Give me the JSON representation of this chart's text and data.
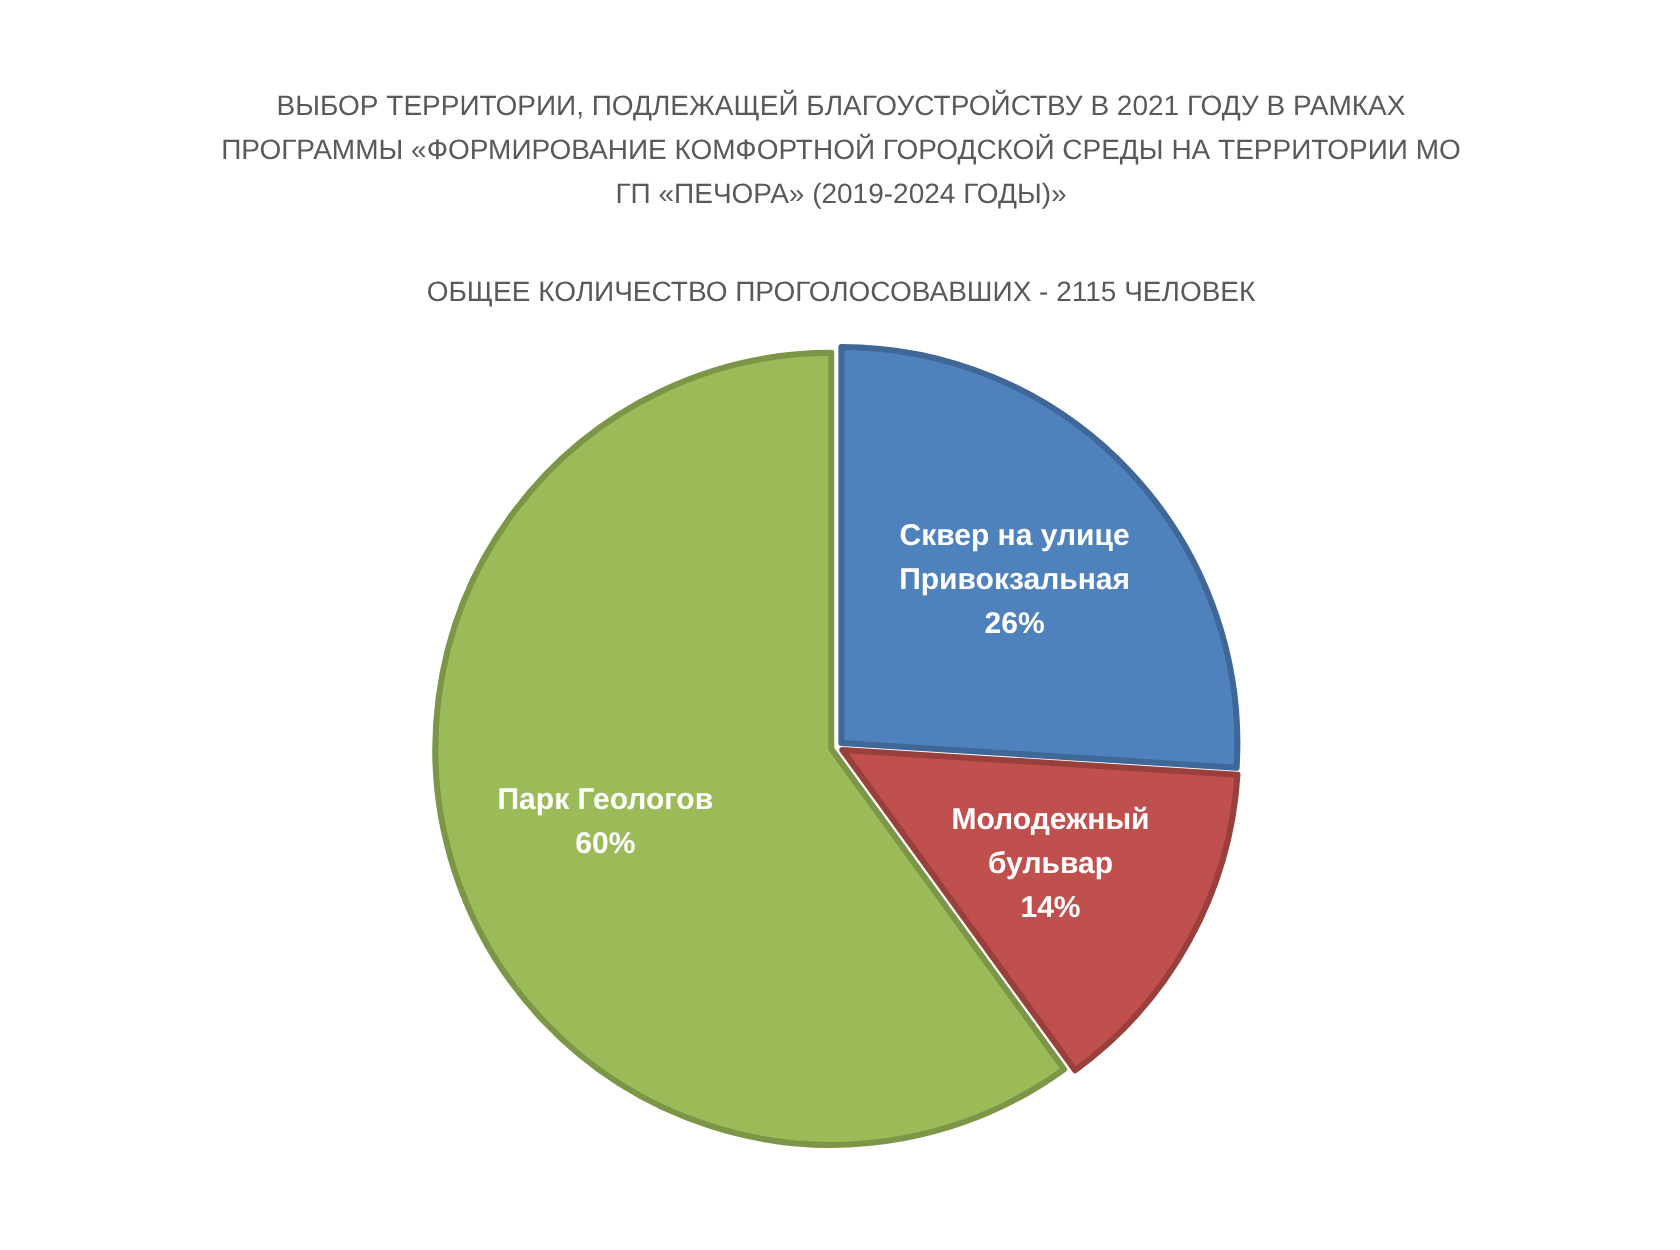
{
  "chart_data": {
    "type": "pie",
    "title": "ВЫБОР ТЕРРИТОРИИ, ПОДЛЕЖАЩЕЙ БЛАГОУСТРОЙСТВУ В 2021 ГОДУ В РАМКАХ ПРОГРАММЫ «ФОРМИРОВАНИЕ КОМФОРТНОЙ ГОРОДСКОЙ СРЕДЫ НА ТЕРРИТОРИИ МО ГП «ПЕЧОРА» (2019-2024 ГОДЫ)»",
    "subtitle": "ОБЩЕЕ КОЛИЧЕСТВО ПРОГОЛОСОВАВШИХ - 2115 ЧЕЛОВЕК",
    "categories": [
      "Сквер на улице Привокзальная",
      "Молодежный бульвар",
      "Парк Геологов"
    ],
    "values": [
      26,
      14,
      60
    ],
    "colors": [
      "#4f81bd",
      "#c0504d",
      "#9bbb59"
    ],
    "value_labels": [
      "26%",
      "14%",
      "60%"
    ]
  }
}
